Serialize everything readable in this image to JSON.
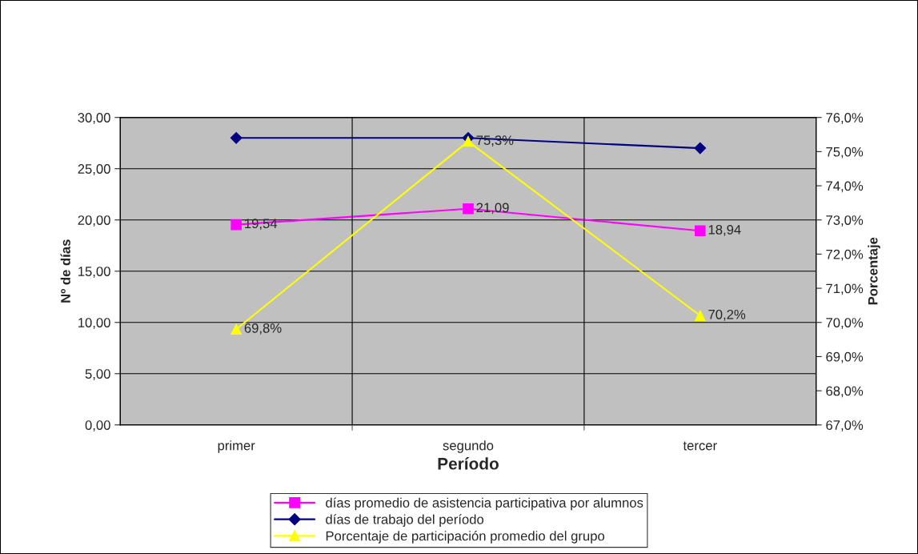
{
  "chart_data": {
    "type": "line",
    "xlabel": "Período",
    "ylabel": "Nº de días",
    "y2label": "Porcentaje",
    "categories": [
      "primer",
      "segundo",
      "tercer"
    ],
    "series": [
      {
        "name": "días promedio de asistencia participativa por alumnos",
        "color": "#ff00ff",
        "marker": "square",
        "values": [
          19.54,
          21.09,
          18.94
        ],
        "value_labels": [
          "19,54",
          "21,09",
          "18,94"
        ]
      },
      {
        "name": "días de trabajo del período",
        "color": "#000080",
        "marker": "diamond",
        "values": [
          28,
          28,
          27
        ]
      },
      {
        "name": "Porcentaje de participación promedio del grupo",
        "color": "#ffff00",
        "marker": "triangle",
        "axis": "y2",
        "values": [
          69.8,
          75.3,
          70.2
        ],
        "value_labels": [
          "69,8%",
          "75,3%",
          "70,2%"
        ]
      }
    ],
    "ylim": [
      0,
      30
    ],
    "yticks": [
      {
        "value": 0,
        "label": "0,00"
      },
      {
        "value": 5,
        "label": "5,00"
      },
      {
        "value": 10,
        "label": "10,00"
      },
      {
        "value": 15,
        "label": "15,00"
      },
      {
        "value": 20,
        "label": "20,00"
      },
      {
        "value": 25,
        "label": "25,00"
      },
      {
        "value": 30,
        "label": "30,00"
      }
    ],
    "y2lim": [
      67,
      76
    ],
    "y2ticks": [
      {
        "value": 67,
        "label": "67,0%"
      },
      {
        "value": 68,
        "label": "68,0%"
      },
      {
        "value": 69,
        "label": "69,0%"
      },
      {
        "value": 70,
        "label": "70,0%"
      },
      {
        "value": 71,
        "label": "71,0%"
      },
      {
        "value": 72,
        "label": "72,0%"
      },
      {
        "value": 73,
        "label": "73,0%"
      },
      {
        "value": 74,
        "label": "74,0%"
      },
      {
        "value": 75,
        "label": "75,0%"
      },
      {
        "value": 76,
        "label": "76,0%"
      }
    ],
    "grid": true,
    "legend": "bottom",
    "line_style": "solid"
  }
}
